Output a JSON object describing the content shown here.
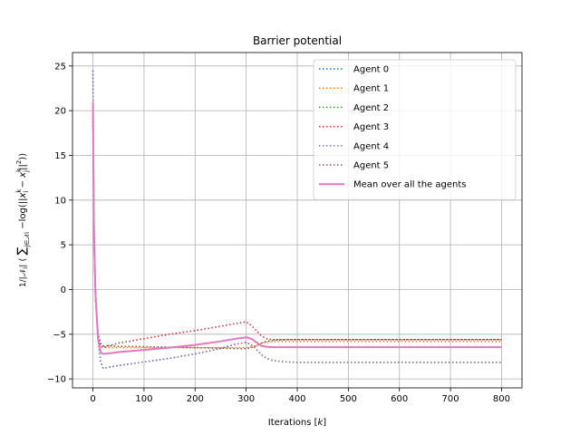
{
  "chart_data": {
    "type": "line",
    "title": "Barrier potential",
    "xlabel": "Iterations [k]",
    "ylabel": "1/|N_i| ( Σ_{j ∈ N_i} −log(||x_i^k − x_j^k||²) )",
    "xlim": [
      -40,
      840
    ],
    "ylim": [
      -11,
      26.5
    ],
    "xticks": [
      0,
      100,
      200,
      300,
      400,
      500,
      600,
      700,
      800
    ],
    "yticks": [
      -10,
      -5,
      0,
      5,
      10,
      15,
      20,
      25
    ],
    "grid": true,
    "legend_position": "top-right",
    "series": [
      {
        "name": "Agent 0",
        "color": "#1f77b4",
        "style": "dotted",
        "x": [
          0,
          2,
          5,
          10,
          15,
          20,
          30,
          50,
          100,
          150,
          200,
          250,
          280,
          300,
          310,
          320,
          330,
          340,
          350,
          360,
          380,
          400,
          500,
          600,
          700,
          800
        ],
        "y": [
          24.5,
          8,
          0,
          -5.5,
          -8,
          -8.8,
          -8.7,
          -8.5,
          -8.1,
          -7.7,
          -7.2,
          -6.6,
          -6.1,
          -5.9,
          -6.2,
          -6.7,
          -7.3,
          -7.7,
          -7.9,
          -8.0,
          -8.1,
          -8.15,
          -8.15,
          -8.15,
          -8.15,
          -8.15
        ]
      },
      {
        "name": "Agent 1",
        "color": "#ff7f0e",
        "style": "dotted",
        "x": [
          0,
          2,
          5,
          10,
          15,
          20,
          30,
          50,
          100,
          150,
          200,
          250,
          280,
          300,
          310,
          320,
          330,
          340,
          350,
          360,
          380,
          400,
          500,
          600,
          700,
          800
        ],
        "y": [
          19.5,
          6,
          -1,
          -5,
          -6.2,
          -6.5,
          -6.5,
          -6.5,
          -6.5,
          -6.5,
          -6.5,
          -6.5,
          -6.5,
          -6.5,
          -6.4,
          -6.3,
          -6.0,
          -5.9,
          -5.85,
          -5.8,
          -5.8,
          -5.8,
          -5.8,
          -5.8,
          -5.8,
          -5.8
        ]
      },
      {
        "name": "Agent 2",
        "color": "#2ca02c",
        "style": "dotted",
        "x": [
          0,
          2,
          5,
          10,
          15,
          20,
          30,
          50,
          100,
          150,
          200,
          250,
          280,
          300,
          310,
          320,
          330,
          340,
          350,
          360,
          380,
          400,
          500,
          600,
          700,
          800
        ],
        "y": [
          19.5,
          6,
          -1,
          -5,
          -6.0,
          -6.3,
          -6.3,
          -6.35,
          -6.4,
          -6.45,
          -6.5,
          -6.55,
          -6.6,
          -6.6,
          -6.5,
          -6.3,
          -6.0,
          -5.8,
          -5.7,
          -5.65,
          -5.6,
          -5.6,
          -5.6,
          -5.6,
          -5.6,
          -5.6
        ]
      },
      {
        "name": "Agent 3",
        "color": "#d62728",
        "style": "dotted",
        "x": [
          0,
          2,
          5,
          10,
          15,
          20,
          30,
          50,
          100,
          150,
          200,
          250,
          280,
          300,
          310,
          320,
          330,
          340,
          350,
          360,
          380,
          400,
          500,
          600,
          700,
          800
        ],
        "y": [
          19.5,
          6,
          -1,
          -5,
          -6.3,
          -6.5,
          -6.3,
          -6.0,
          -5.5,
          -5.0,
          -4.6,
          -4.1,
          -3.8,
          -3.6,
          -4.0,
          -4.6,
          -5.2,
          -5.5,
          -5.6,
          -5.6,
          -5.6,
          -5.6,
          -5.6,
          -5.6,
          -5.6,
          -5.6
        ]
      },
      {
        "name": "Agent 4",
        "color": "#9467bd",
        "style": "dotted",
        "x": [
          0,
          2,
          5,
          10,
          15,
          20,
          30,
          50,
          100,
          150,
          200,
          250,
          280,
          300,
          310,
          320,
          330,
          340,
          350,
          360,
          380,
          400,
          500,
          600,
          700,
          800
        ],
        "y": [
          24.5,
          8,
          0,
          -5.5,
          -8,
          -8.8,
          -8.7,
          -8.5,
          -8.1,
          -7.7,
          -7.2,
          -6.6,
          -6.1,
          -5.9,
          -6.2,
          -6.7,
          -7.3,
          -7.7,
          -7.9,
          -8.0,
          -8.1,
          -8.15,
          -8.15,
          -8.15,
          -8.15,
          -8.15
        ]
      },
      {
        "name": "Agent 5",
        "color": "#8c564b",
        "style": "dotted",
        "x": [
          0,
          2,
          5,
          10,
          15,
          20,
          30,
          50,
          100,
          150,
          200,
          250,
          280,
          300,
          310,
          320,
          330,
          340,
          350,
          360,
          380,
          400,
          500,
          600,
          700,
          800
        ],
        "y": [
          19.5,
          6,
          -1,
          -5,
          -6.0,
          -6.3,
          -6.3,
          -6.35,
          -6.4,
          -6.45,
          -6.5,
          -6.55,
          -6.6,
          -6.6,
          -6.5,
          -6.3,
          -6.0,
          -5.8,
          -5.7,
          -5.65,
          -5.6,
          -5.6,
          -5.6,
          -5.6,
          -5.6,
          -5.6
        ]
      },
      {
        "name": "Mean over all the agents",
        "color": "#e377c2",
        "style": "solid",
        "x": [
          0,
          2,
          5,
          10,
          15,
          20,
          30,
          50,
          100,
          150,
          200,
          250,
          280,
          300,
          310,
          320,
          330,
          340,
          350,
          360,
          380,
          400,
          500,
          600,
          700,
          800
        ],
        "y": [
          21,
          6.5,
          -0.5,
          -5.5,
          -7.0,
          -7.2,
          -7.15,
          -7.0,
          -6.75,
          -6.5,
          -6.2,
          -5.8,
          -5.5,
          -5.35,
          -5.5,
          -5.9,
          -6.3,
          -6.4,
          -6.45,
          -6.45,
          -6.45,
          -6.45,
          -6.45,
          -6.45,
          -6.45,
          -6.45
        ]
      }
    ]
  }
}
